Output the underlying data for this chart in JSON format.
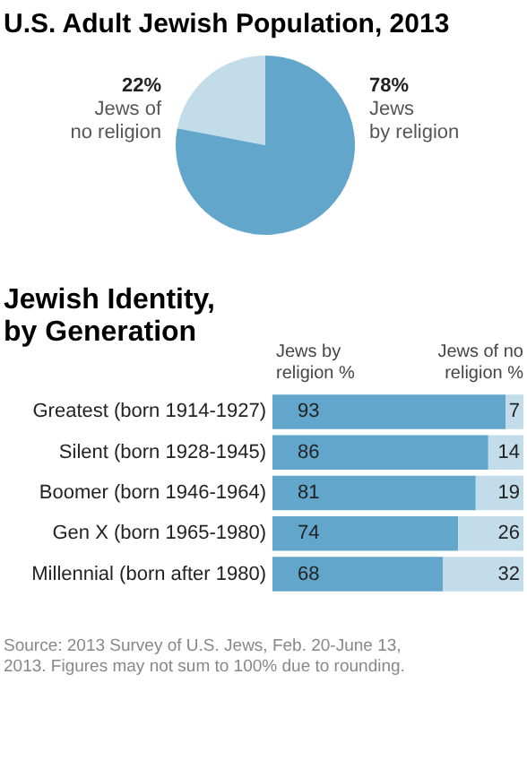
{
  "chart_data": [
    {
      "type": "pie",
      "title": "U.S. Adult Jewish Population, 2013",
      "categories": [
        "Jews of\nno religion",
        "Jews\nby religion"
      ],
      "values": [
        22,
        78
      ],
      "colors": [
        "#c3dcea",
        "#63a6cb"
      ],
      "value_labels": [
        "22%",
        "78%"
      ],
      "legend": false
    },
    {
      "type": "bar",
      "orientation": "horizontal",
      "stacked": true,
      "title": "Jewish Identity,\nby Generation",
      "categories": [
        "Greatest (born 1914-1927)",
        "Silent (born 1928-1945)",
        "Boomer (born 1946-1964)",
        "Gen X (born 1965-1980)",
        "Millennial (born after 1980)"
      ],
      "series": [
        {
          "name": "Jews by\nreligion %",
          "color": "#63a6cb",
          "values": [
            93,
            86,
            81,
            74,
            68
          ]
        },
        {
          "name": "Jews of no\nreligion %",
          "color": "#c3dcea",
          "values": [
            7,
            14,
            19,
            26,
            32
          ]
        }
      ],
      "xlim": [
        0,
        100
      ],
      "data_labels": true,
      "grid": false,
      "annotations": [
        "Source: 2013 Survey of U.S. Jews, Feb. 20-June 13, 2013. Figures may not sum to 100% due to rounding."
      ]
    }
  ]
}
